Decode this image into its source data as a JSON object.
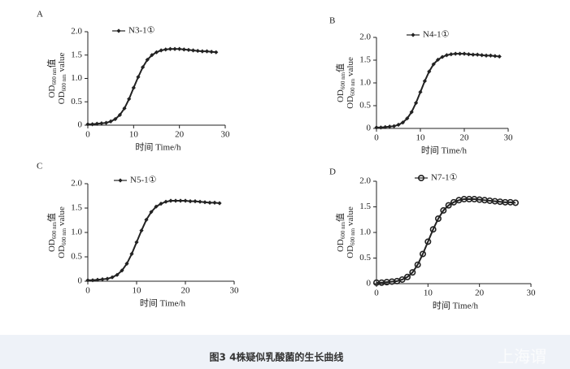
{
  "chart_data": [
    {
      "type": "line",
      "panel": "A",
      "series": [
        {
          "name": "N3-1①",
          "color": "#222222",
          "marker": "diamond",
          "x": [
            0,
            1,
            2,
            3,
            4,
            5,
            6,
            7,
            8,
            9,
            10,
            11,
            12,
            13,
            14,
            15,
            16,
            17,
            18,
            19,
            20,
            21,
            22,
            23,
            24,
            25,
            26,
            27,
            28
          ],
          "values": [
            0.02,
            0.02,
            0.03,
            0.04,
            0.05,
            0.08,
            0.13,
            0.22,
            0.36,
            0.56,
            0.8,
            1.03,
            1.24,
            1.4,
            1.5,
            1.56,
            1.6,
            1.62,
            1.63,
            1.63,
            1.63,
            1.62,
            1.61,
            1.6,
            1.59,
            1.58,
            1.58,
            1.57,
            1.56
          ]
        }
      ],
      "xlabel": "时间  Time/h",
      "ylabel_zh": [
        "OD",
        "600 nm",
        "值"
      ],
      "ylabel_en": [
        "OD",
        "600 nm",
        " value"
      ],
      "xlim": [
        0,
        30
      ],
      "xticks": [
        0,
        10,
        20,
        30
      ],
      "ylim": [
        0,
        2
      ],
      "yticks": [
        0,
        0.5,
        {
          "value": 1,
          "label": "1.0"
        },
        1.5,
        {
          "value": 2,
          "label": "2.0"
        }
      ]
    },
    {
      "type": "line",
      "panel": "B",
      "series": [
        {
          "name": "N4-1①",
          "color": "#222222",
          "marker": "diamond",
          "x": [
            0,
            1,
            2,
            3,
            4,
            5,
            6,
            7,
            8,
            9,
            10,
            11,
            12,
            13,
            14,
            15,
            16,
            17,
            18,
            19,
            20,
            21,
            22,
            23,
            24,
            25,
            26,
            27,
            28
          ],
          "values": [
            0.02,
            0.02,
            0.03,
            0.04,
            0.05,
            0.08,
            0.13,
            0.22,
            0.36,
            0.56,
            0.8,
            1.04,
            1.25,
            1.41,
            1.51,
            1.57,
            1.61,
            1.63,
            1.64,
            1.64,
            1.64,
            1.63,
            1.62,
            1.62,
            1.61,
            1.6,
            1.6,
            1.59,
            1.58
          ]
        }
      ],
      "xlabel": "时间  Time/h",
      "ylabel_zh": [
        "OD",
        "600 nm",
        "值"
      ],
      "ylabel_en": [
        "OD",
        "600 nm",
        " value"
      ],
      "xlim": [
        0,
        30
      ],
      "xticks": [
        0,
        10,
        20,
        30
      ],
      "ylim": [
        0,
        2
      ],
      "yticks": [
        0,
        0.5,
        {
          "value": 1,
          "label": "1.0"
        },
        1.5,
        {
          "value": 2,
          "label": "2.0"
        }
      ]
    },
    {
      "type": "line",
      "panel": "C",
      "series": [
        {
          "name": "N5-1①",
          "color": "#222222",
          "marker": "diamond",
          "x": [
            0,
            1,
            2,
            3,
            4,
            5,
            6,
            7,
            8,
            9,
            10,
            11,
            12,
            13,
            14,
            15,
            16,
            17,
            18,
            19,
            20,
            21,
            22,
            23,
            24,
            25,
            26,
            27
          ],
          "values": [
            0.02,
            0.02,
            0.03,
            0.04,
            0.05,
            0.08,
            0.13,
            0.22,
            0.36,
            0.56,
            0.8,
            1.04,
            1.26,
            1.42,
            1.53,
            1.59,
            1.63,
            1.65,
            1.65,
            1.65,
            1.65,
            1.64,
            1.64,
            1.63,
            1.62,
            1.61,
            1.61,
            1.6
          ]
        }
      ],
      "xlabel": "时间  Time/h",
      "ylabel_zh": [
        "OD",
        "600 nm",
        "值"
      ],
      "ylabel_en": [
        "OD",
        "600 nm",
        " value"
      ],
      "xlim": [
        0,
        30
      ],
      "xticks": [
        0,
        10,
        20,
        30
      ],
      "ylim": [
        0,
        2
      ],
      "yticks": [
        0,
        0.5,
        {
          "value": 1,
          "label": "1.0"
        },
        1.5,
        {
          "value": 2,
          "label": "2.0"
        }
      ]
    },
    {
      "type": "line",
      "panel": "D",
      "series": [
        {
          "name": "N7-1①",
          "color": "#222222",
          "marker": "open-circle",
          "x": [
            0,
            1,
            2,
            3,
            4,
            5,
            6,
            7,
            8,
            9,
            10,
            11,
            12,
            13,
            14,
            15,
            16,
            17,
            18,
            19,
            20,
            21,
            22,
            23,
            24,
            25,
            26,
            27
          ],
          "values": [
            0.02,
            0.02,
            0.03,
            0.04,
            0.05,
            0.08,
            0.13,
            0.22,
            0.37,
            0.58,
            0.82,
            1.06,
            1.27,
            1.43,
            1.53,
            1.59,
            1.63,
            1.65,
            1.65,
            1.65,
            1.64,
            1.63,
            1.62,
            1.61,
            1.6,
            1.59,
            1.59,
            1.58
          ]
        }
      ],
      "xlabel": "时间  Time/h",
      "ylabel_zh": [
        "OD",
        "600 nm",
        "值"
      ],
      "ylabel_en": [
        "OD",
        "600 nm",
        " value"
      ],
      "xlim": [
        0,
        30
      ],
      "xticks": [
        0,
        10,
        20,
        30
      ],
      "ylim": [
        0,
        2
      ],
      "yticks": [
        0,
        0.5,
        {
          "value": 1,
          "label": "1.0"
        },
        1.5,
        {
          "value": 2,
          "label": "2.0"
        }
      ]
    }
  ],
  "caption": "图3 4株疑似乳酸菌的生长曲线",
  "watermark": "上海谓"
}
